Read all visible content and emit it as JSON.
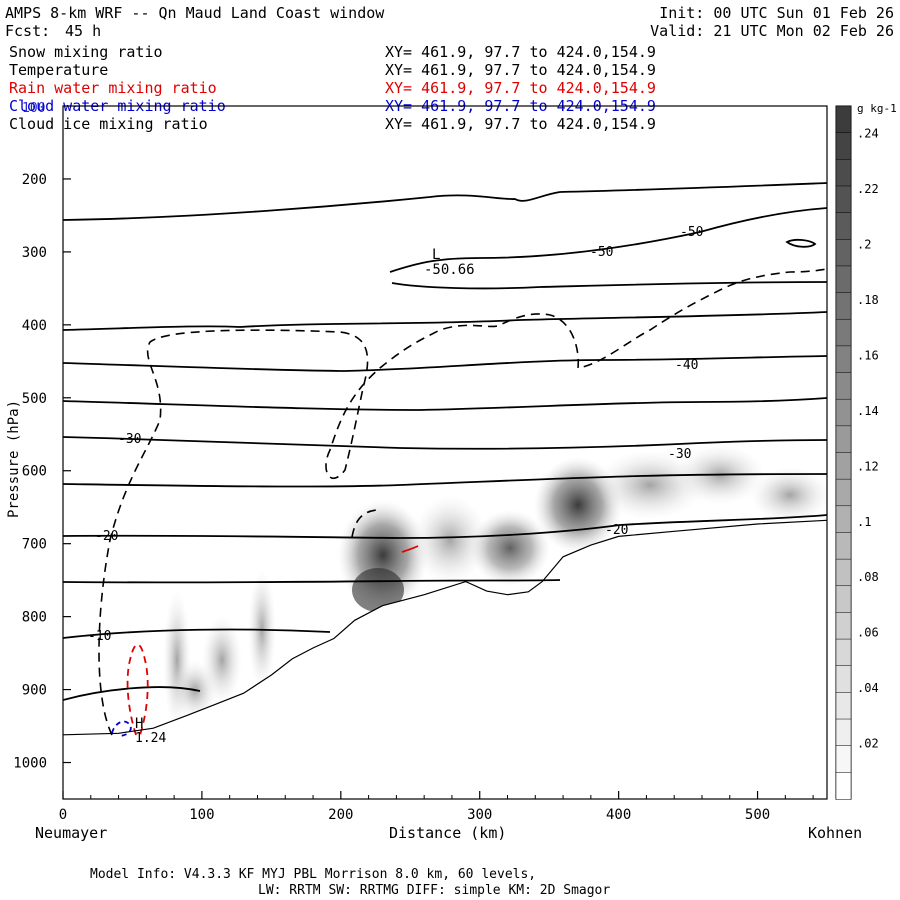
{
  "header": {
    "title": "AMPS 8-km WRF -- Qn Maud Land Coast window",
    "fcst_label": "Fcst:",
    "fcst_value": "45 h",
    "init": "Init: 00 UTC Sun 01 Feb 26",
    "valid": "Valid: 21 UTC Mon 02 Feb 26"
  },
  "fields": [
    {
      "name": "Snow mixing ratio",
      "xy": "XY= 461.9, 97.7 to 424.0,154.9",
      "color": "#000000"
    },
    {
      "name": "Temperature",
      "xy": "XY= 461.9, 97.7 to 424.0,154.9",
      "color": "#000000"
    },
    {
      "name": "Rain water mixing ratio",
      "xy": "XY= 461.9, 97.7 to 424.0,154.9",
      "color": "#e00000"
    },
    {
      "name": "Cloud water mixing ratio",
      "xy": "XY= 461.9, 97.7 to 424.0,154.9",
      "color": "#0000d0"
    },
    {
      "name": "Cloud ice mixing ratio",
      "xy": "XY= 461.9, 97.7 to 424.0,154.9",
      "color": "#000000"
    }
  ],
  "chart_data": {
    "type": "cross-section",
    "xlabel": "Distance (km)",
    "ylabel": "Pressure (hPa)",
    "xlim": [
      0,
      550
    ],
    "ylim": [
      1050,
      100
    ],
    "x_ticks": [
      0,
      100,
      200,
      300,
      400,
      500
    ],
    "y_ticks": [
      200,
      300,
      400,
      500,
      600,
      700,
      800,
      900,
      1000
    ],
    "y_tick_labels": [
      "200",
      "300",
      "400",
      "500",
      "600",
      "700",
      "800",
      "900",
      "1000"
    ],
    "y_top_label": "100",
    "left_endpoint": "Neumayer",
    "right_endpoint": "Kohnen",
    "colorbar": {
      "unit": "g kg-1",
      "labels": [
        ".24",
        ".22",
        ".2",
        ".18",
        ".16",
        ".14",
        ".12",
        ".1",
        ".08",
        ".06",
        ".04",
        ".02"
      ]
    },
    "temperature_labels": [
      "-50",
      "-50",
      "-40",
      "-30",
      "-30",
      "-20",
      "-20",
      "-10"
    ],
    "low_marker": {
      "label": "L",
      "value": "-50.66",
      "x_km": 265,
      "p_hpa": 300
    },
    "high_marker": {
      "label": "H",
      "value": "1.24",
      "x_km": 56,
      "p_hpa": 950
    },
    "terrain_p_hpa": [
      [
        0,
        962
      ],
      [
        40,
        960
      ],
      [
        65,
        953
      ],
      [
        90,
        935
      ],
      [
        110,
        920
      ],
      [
        130,
        905
      ],
      [
        150,
        880
      ],
      [
        165,
        858
      ],
      [
        180,
        843
      ],
      [
        195,
        830
      ],
      [
        210,
        805
      ],
      [
        230,
        785
      ],
      [
        260,
        770
      ],
      [
        290,
        752
      ],
      [
        305,
        765
      ],
      [
        320,
        770
      ],
      [
        335,
        766
      ],
      [
        345,
        752
      ],
      [
        360,
        718
      ],
      [
        380,
        702
      ],
      [
        400,
        690
      ],
      [
        440,
        683
      ],
      [
        500,
        673
      ],
      [
        550,
        668
      ]
    ],
    "snow_peak_g_kg": 0.24
  },
  "model_info": {
    "line1": "Model Info: V4.3.3   KF      MYJ PBL  Morrison              8.0 km,  60 levels,",
    "line2": "LW: RRTM SW: RRTMG   DIFF: simple KM: 2D Smagor"
  }
}
